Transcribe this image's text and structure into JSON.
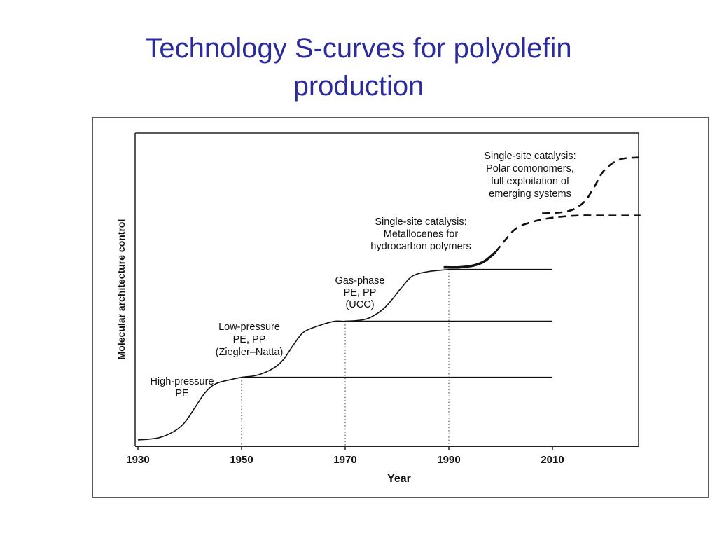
{
  "title": {
    "line1": "Technology S-curves for polyolefin",
    "line2": "production"
  },
  "chart_data": {
    "type": "line",
    "xlabel": "Year",
    "ylabel": "Molecular architecture control",
    "x_ticks": [
      1930,
      1950,
      1970,
      1990,
      2010
    ],
    "xlim": [
      1930,
      2027
    ],
    "ylim": [
      0,
      1
    ],
    "grid": false,
    "series": [
      {
        "style": "solid",
        "x": [
          1930,
          1934,
          1937,
          1939,
          1941,
          1943,
          1945,
          1948,
          1950,
          1953,
          1956,
          1958,
          1960,
          1962,
          1965,
          1968,
          1970,
          1974,
          1977,
          1979,
          1981,
          1983,
          1986,
          1990
        ],
        "y": [
          0.0,
          0.01,
          0.04,
          0.08,
          0.15,
          0.22,
          0.26,
          0.28,
          0.29,
          0.3,
          0.33,
          0.37,
          0.44,
          0.5,
          0.53,
          0.55,
          0.55,
          0.56,
          0.6,
          0.65,
          0.71,
          0.76,
          0.78,
          0.79
        ]
      },
      {
        "style": "solid",
        "x": [
          1950,
          2010
        ],
        "y": [
          0.29,
          0.29
        ]
      },
      {
        "style": "solid",
        "x": [
          1970,
          2010
        ],
        "y": [
          0.55,
          0.55
        ]
      },
      {
        "style": "solid",
        "x": [
          1990,
          2010
        ],
        "y": [
          0.79,
          0.79
        ]
      },
      {
        "style": "solid-bold",
        "x": [
          1989,
          1992,
          1995,
          1997,
          1999
        ],
        "y": [
          0.8,
          0.8,
          0.81,
          0.83,
          0.87
        ]
      },
      {
        "style": "dashed",
        "x": [
          1999,
          2001,
          2003,
          2006,
          2010,
          2015,
          2020,
          2027
        ],
        "y": [
          0.87,
          0.93,
          0.98,
          1.01,
          1.03,
          1.04,
          1.04,
          1.04
        ]
      },
      {
        "style": "dashed",
        "x": [
          2008,
          2013,
          2016,
          2018,
          2020,
          2023,
          2027
        ],
        "y": [
          1.05,
          1.06,
          1.1,
          1.17,
          1.25,
          1.3,
          1.31
        ]
      }
    ],
    "reference_lines": [
      1950,
      1970,
      1990
    ],
    "annotations": [
      {
        "lines": [
          "High-pressure",
          "PE"
        ]
      },
      {
        "lines": [
          "Low-pressure",
          "PE, PP",
          "(Ziegler–Natta)"
        ]
      },
      {
        "lines": [
          "Gas-phase",
          "PE, PP",
          "(UCC)"
        ]
      },
      {
        "lines": [
          "Single-site catalysis:",
          "Metallocenes for",
          "hydrocarbon polymers"
        ]
      },
      {
        "lines": [
          "Single-site catalysis:",
          "Polar comonomers,",
          "full exploitation of",
          "emerging systems"
        ]
      }
    ]
  }
}
